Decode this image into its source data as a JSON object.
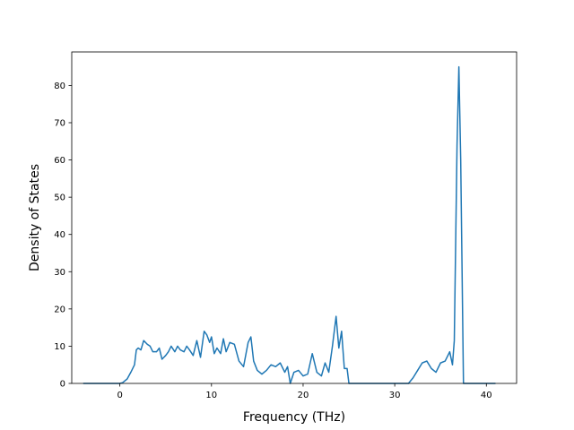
{
  "chart_data": {
    "type": "line",
    "title": "",
    "xlabel": "Frequency (THz)",
    "ylabel": "Density of States",
    "xlim": [
      -5.25,
      43.3
    ],
    "ylim": [
      0,
      89
    ],
    "x_ticks": [
      0,
      10,
      20,
      30,
      40
    ],
    "y_ticks": [
      0,
      10,
      20,
      30,
      40,
      50,
      60,
      70,
      80
    ],
    "grid": false,
    "legend": "none",
    "line_color": "#1f77b4",
    "series": [
      {
        "x": [
          -4.0,
          -3.0,
          -2.0,
          -1.0,
          0.0,
          0.3,
          0.8,
          1.2,
          1.6,
          1.8,
          2.0,
          2.3,
          2.6,
          3.0,
          3.3,
          3.6,
          4.0,
          4.3,
          4.6,
          5.0,
          5.3,
          5.6,
          6.0,
          6.3,
          6.6,
          7.0,
          7.3,
          7.6,
          8.0,
          8.4,
          8.8,
          9.2,
          9.5,
          9.8,
          10.0,
          10.3,
          10.6,
          11.0,
          11.3,
          11.6,
          12.0,
          12.5,
          13.0,
          13.5,
          14.0,
          14.3,
          14.6,
          15.0,
          15.5,
          16.0,
          16.5,
          17.0,
          17.5,
          18.0,
          18.3,
          18.6,
          19.0,
          19.5,
          20.0,
          20.5,
          21.0,
          21.5,
          22.0,
          22.4,
          22.8,
          23.2,
          23.6,
          23.9,
          24.2,
          24.5,
          24.8,
          25.0,
          26.0,
          28.0,
          30.0,
          31.5,
          32.0,
          32.5,
          33.0,
          33.5,
          34.0,
          34.5,
          35.0,
          35.5,
          36.0,
          36.3,
          36.5,
          36.8,
          37.0,
          37.2,
          37.5,
          38.0,
          39.0,
          41.0
        ],
        "y": [
          0,
          0,
          0,
          0,
          0,
          0.2,
          1.2,
          3.0,
          5.0,
          9.0,
          9.5,
          9.0,
          11.5,
          10.5,
          10.0,
          8.5,
          8.5,
          9.5,
          6.5,
          7.5,
          8.5,
          10.0,
          8.5,
          10.0,
          9.0,
          8.5,
          10.0,
          9.0,
          7.5,
          11.5,
          7.0,
          14.0,
          13.0,
          11.0,
          12.5,
          8.0,
          9.5,
          8.0,
          12.0,
          8.5,
          11.0,
          10.5,
          6.0,
          4.5,
          11.0,
          12.5,
          6.0,
          3.5,
          2.5,
          3.5,
          5.0,
          4.5,
          5.5,
          3.0,
          4.5,
          0,
          3.0,
          3.5,
          2.0,
          2.5,
          8.0,
          3.0,
          2.0,
          5.5,
          3.0,
          10.0,
          18.0,
          9.5,
          14.0,
          4.0,
          4.0,
          0,
          0,
          0,
          0,
          0,
          1.5,
          3.5,
          5.5,
          6.0,
          4.0,
          3.0,
          5.5,
          6.0,
          8.5,
          5.0,
          11.5,
          64.0,
          85.0,
          60.0,
          0,
          0,
          0,
          0
        ]
      }
    ]
  }
}
